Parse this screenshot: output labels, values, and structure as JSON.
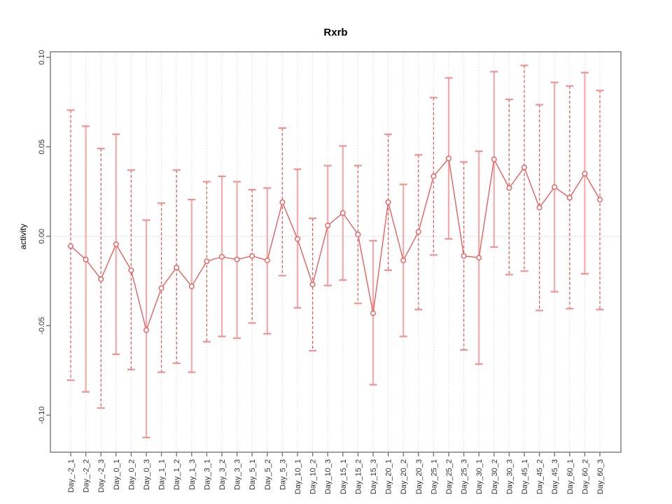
{
  "window": {
    "background": "#ffffff"
  },
  "chart_data": {
    "type": "line",
    "subtype": "means-with-error-bars",
    "title": "Rxrb",
    "xlabel": "",
    "ylabel": "activity",
    "legend": "none",
    "grid": "vertical dotted gridline at every category; dotted horizontal line at y=0",
    "ylim": [
      -0.121,
      0.103
    ],
    "yticks": {
      "values": [
        0.1,
        0.05,
        0.0,
        -0.05,
        -0.1
      ],
      "labels": [
        "0.10",
        "0.05",
        "0.00",
        "-0.05",
        "-0.10"
      ]
    },
    "categories": [
      "Day_-2_1",
      "Day_-2_2",
      "Day_-2_3",
      "Day_0_1",
      "Day_0_2",
      "Day_0_3",
      "Day_1_1",
      "Day_1_2",
      "Day_1_3",
      "Day_3_1",
      "Day_3_2",
      "Day_3_3",
      "Day_5_1",
      "Day_5_2",
      "Day_5_3",
      "Day_10_1",
      "Day_10_2",
      "Day_10_3",
      "Day_15_1",
      "Day_15_2",
      "Day_15_3",
      "Day_20_1",
      "Day_20_2",
      "Day_20_3",
      "Day_25_1",
      "Day_25_2",
      "Day_25_3",
      "Day_30_1",
      "Day_30_2",
      "Day_30_3",
      "Day_45_1",
      "Day_45_2",
      "Day_45_3",
      "Day_60_1",
      "Day_60_2",
      "Day_60_3"
    ],
    "series": [
      {
        "name": "mean",
        "values": [
          -0.0055,
          -0.013,
          -0.024,
          -0.0045,
          -0.019,
          -0.0525,
          -0.029,
          -0.0175,
          -0.028,
          -0.014,
          -0.0115,
          -0.013,
          -0.011,
          -0.0135,
          0.019,
          -0.0015,
          -0.027,
          0.006,
          0.013,
          0.001,
          -0.043,
          0.019,
          -0.0135,
          0.0025,
          0.0335,
          0.0435,
          -0.011,
          -0.012,
          0.043,
          0.027,
          0.0385,
          0.016,
          0.0275,
          0.0215,
          0.035,
          0.0205
        ]
      },
      {
        "name": "upper_error",
        "values": [
          0.0705,
          0.0615,
          0.049,
          0.057,
          0.037,
          0.009,
          0.0185,
          0.037,
          0.0205,
          0.0305,
          0.0335,
          0.0305,
          0.026,
          0.027,
          0.0605,
          0.0375,
          0.01,
          0.0395,
          0.0505,
          0.0395,
          -0.0025,
          0.057,
          0.029,
          0.0455,
          0.0775,
          0.0885,
          0.0415,
          0.0475,
          0.092,
          0.0765,
          0.0955,
          0.0735,
          0.086,
          0.084,
          0.0915,
          0.0815
        ]
      },
      {
        "name": "lower_error",
        "values": [
          -0.0805,
          -0.087,
          -0.096,
          -0.066,
          -0.0745,
          -0.1125,
          -0.076,
          -0.071,
          -0.076,
          -0.059,
          -0.056,
          -0.057,
          -0.0485,
          -0.0545,
          -0.022,
          -0.04,
          -0.064,
          -0.0275,
          -0.0245,
          -0.0375,
          -0.083,
          -0.019,
          -0.056,
          -0.041,
          -0.0105,
          -0.0015,
          -0.0635,
          -0.0715,
          -0.006,
          -0.0215,
          -0.0195,
          -0.0415,
          -0.031,
          -0.0405,
          -0.021,
          -0.041
        ]
      }
    ],
    "bar_styles": [
      "dashed",
      "solid",
      "dashed",
      "solid",
      "dashed",
      "solid",
      "dashed",
      "dashed",
      "solid",
      "dashed",
      "solid",
      "solid",
      "dashed",
      "solid",
      "dashed",
      "solid",
      "dashed",
      "solid",
      "solid",
      "dashed",
      "solid",
      "dashed",
      "solid",
      "dashed",
      "dashed",
      "solid",
      "dashed",
      "solid",
      "solid",
      "dashed",
      "dashed",
      "dashed",
      "solid",
      "dashed",
      "solid",
      "dashed"
    ],
    "marker": "open-circle",
    "colors": {
      "series": "#ef5350",
      "error_bar_dashed": "#e25c5c",
      "error_bar_solid": "#f7a8a8",
      "error_bar_cap": "#f49090",
      "gridline": "#d9d9d9",
      "zero_line": "#ddcbcb",
      "frame": "#777777",
      "text": "#333333"
    }
  }
}
